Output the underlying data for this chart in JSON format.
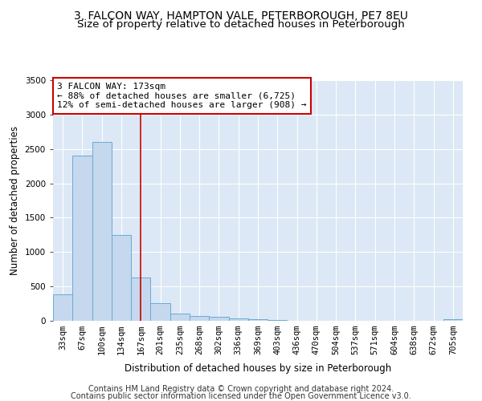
{
  "title": "3, FALCON WAY, HAMPTON VALE, PETERBOROUGH, PE7 8EU",
  "subtitle": "Size of property relative to detached houses in Peterborough",
  "xlabel": "Distribution of detached houses by size in Peterborough",
  "ylabel": "Number of detached properties",
  "categories": [
    "33sqm",
    "67sqm",
    "100sqm",
    "134sqm",
    "167sqm",
    "201sqm",
    "235sqm",
    "268sqm",
    "302sqm",
    "336sqm",
    "369sqm",
    "403sqm",
    "436sqm",
    "470sqm",
    "504sqm",
    "537sqm",
    "571sqm",
    "604sqm",
    "638sqm",
    "672sqm",
    "705sqm"
  ],
  "values": [
    390,
    2400,
    2600,
    1250,
    635,
    255,
    100,
    70,
    55,
    30,
    20,
    15,
    0,
    0,
    0,
    0,
    0,
    0,
    0,
    0,
    20
  ],
  "bar_color": "#c5d8ee",
  "bar_edge_color": "#6aaad4",
  "vline_x_index": 4,
  "vline_color": "#cc0000",
  "annotation_text": "3 FALCON WAY: 173sqm\n← 88% of detached houses are smaller (6,725)\n12% of semi-detached houses are larger (908) →",
  "annotation_box_color": "#ffffff",
  "annotation_box_edgecolor": "#cc0000",
  "ylim": [
    0,
    3500
  ],
  "yticks": [
    0,
    500,
    1000,
    1500,
    2000,
    2500,
    3000,
    3500
  ],
  "bg_color": "#dce8f5",
  "grid_color": "#ffffff",
  "footer1": "Contains HM Land Registry data © Crown copyright and database right 2024.",
  "footer2": "Contains public sector information licensed under the Open Government Licence v3.0.",
  "title_fontsize": 10,
  "subtitle_fontsize": 9.5,
  "label_fontsize": 8.5,
  "tick_fontsize": 7.5,
  "footer_fontsize": 7
}
